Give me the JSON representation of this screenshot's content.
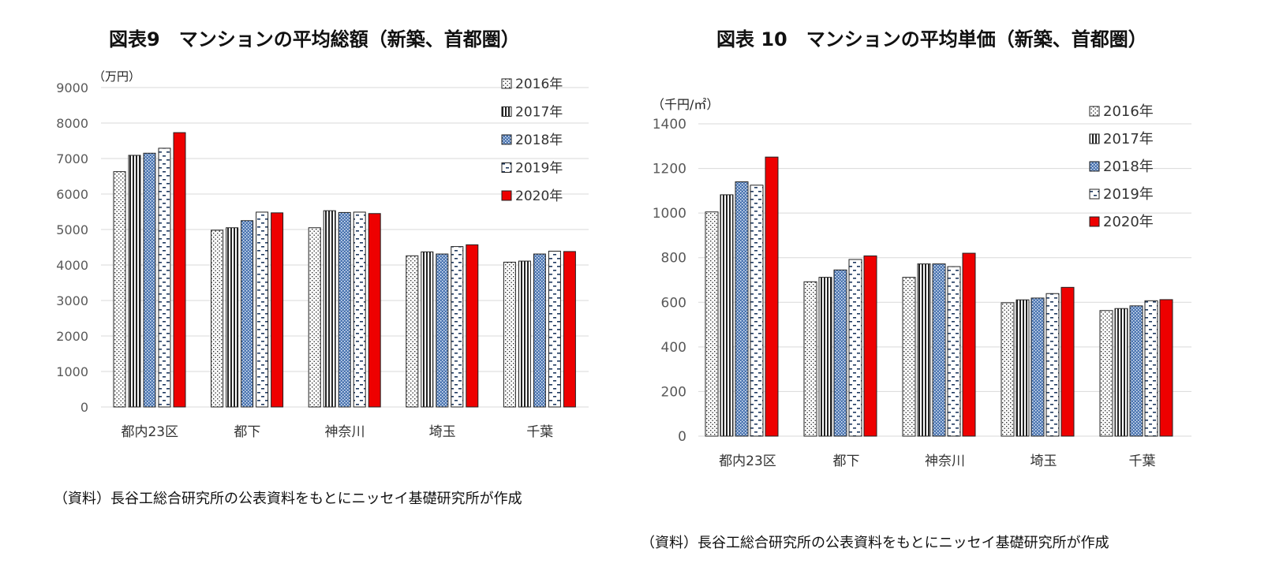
{
  "chart_data": [
    {
      "type": "bar",
      "title": "図表9　マンションの平均総額（新築、首都圏）",
      "unit_label": "（万円）",
      "categories": [
        "都内23区",
        "都下",
        "神奈川",
        "埼玉",
        "千葉"
      ],
      "ylim": [
        0,
        9000
      ],
      "yticks": [
        0,
        1000,
        2000,
        3000,
        4000,
        5000,
        6000,
        7000,
        8000,
        9000
      ],
      "grid": true,
      "legend_position": "top-right",
      "series": [
        {
          "name": "2016年",
          "values": [
            6630,
            4980,
            5050,
            4260,
            4080
          ]
        },
        {
          "name": "2017年",
          "values": [
            7090,
            5050,
            5530,
            4370,
            4110
          ]
        },
        {
          "name": "2018年",
          "values": [
            7150,
            5250,
            5480,
            4310,
            4310
          ]
        },
        {
          "name": "2019年",
          "values": [
            7290,
            5490,
            5490,
            4520,
            4390
          ]
        },
        {
          "name": "2020年",
          "values": [
            7730,
            5470,
            5450,
            4570,
            4380
          ]
        }
      ],
      "source": "（資料）長谷工総合研究所の公表資料をもとにニッセイ基礎研究所が作成"
    },
    {
      "type": "bar",
      "title": "図表 10　マンションの平均単価（新築、首都圏）",
      "unit_label": "（千円/㎡）",
      "categories": [
        "都内23区",
        "都下",
        "神奈川",
        "埼玉",
        "千葉"
      ],
      "ylim": [
        0,
        1400
      ],
      "yticks": [
        0,
        200,
        400,
        600,
        800,
        1000,
        1200,
        1400
      ],
      "grid": true,
      "legend_position": "top-right",
      "series": [
        {
          "name": "2016年",
          "values": [
            1005,
            692,
            712,
            598,
            563
          ]
        },
        {
          "name": "2017年",
          "values": [
            1082,
            712,
            772,
            611,
            572
          ]
        },
        {
          "name": "2018年",
          "values": [
            1140,
            745,
            772,
            619,
            584
          ]
        },
        {
          "name": "2019年",
          "values": [
            1125,
            792,
            760,
            639,
            607
          ]
        },
        {
          "name": "2020年",
          "values": [
            1251,
            808,
            820,
            667,
            612
          ]
        }
      ],
      "source": "（資料）長谷工総合研究所の公表資料をもとにニッセイ基礎研究所が作成"
    }
  ],
  "colors": {
    "bar_outline": "#222222",
    "series_2016": "#333333",
    "series_2017": "#222222",
    "series_2018": "#4a74b0",
    "series_2019": "#1f3a60",
    "series_2020": "#ee0000",
    "grid": "#d9d9d9",
    "tick_text": "#595959"
  }
}
